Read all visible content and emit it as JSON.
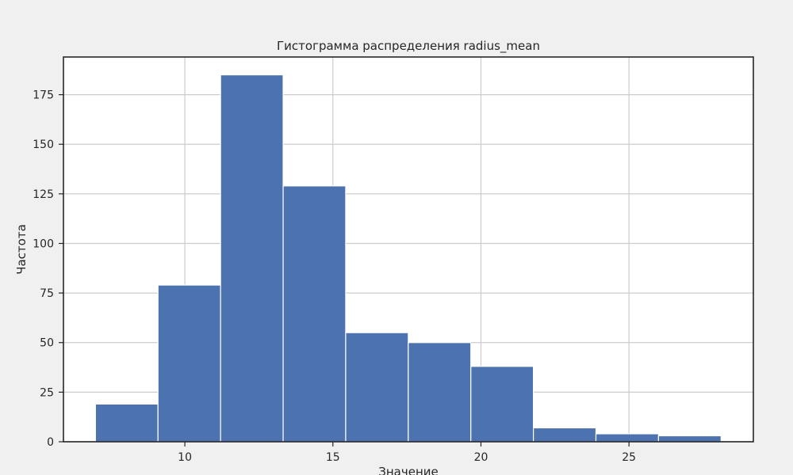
{
  "chart_data": {
    "type": "bar",
    "title": "Гистограмма распределения radius_mean",
    "xlabel": "Значение",
    "ylabel": "Частота",
    "bin_edges": [
      6.981,
      9.0939,
      11.2068,
      13.3197,
      15.4326,
      17.5455,
      19.6584,
      21.7713,
      23.8842,
      25.9971,
      28.11
    ],
    "values": [
      19,
      79,
      185,
      129,
      55,
      50,
      38,
      7,
      4,
      3
    ],
    "xlim": [
      5.9,
      29.2
    ],
    "ylim": [
      0,
      194
    ],
    "xticks": [
      10,
      15,
      20,
      25
    ],
    "yticks": [
      0,
      25,
      50,
      75,
      100,
      125,
      150,
      175
    ],
    "grid": true,
    "bar_color": "#4c72b0"
  }
}
